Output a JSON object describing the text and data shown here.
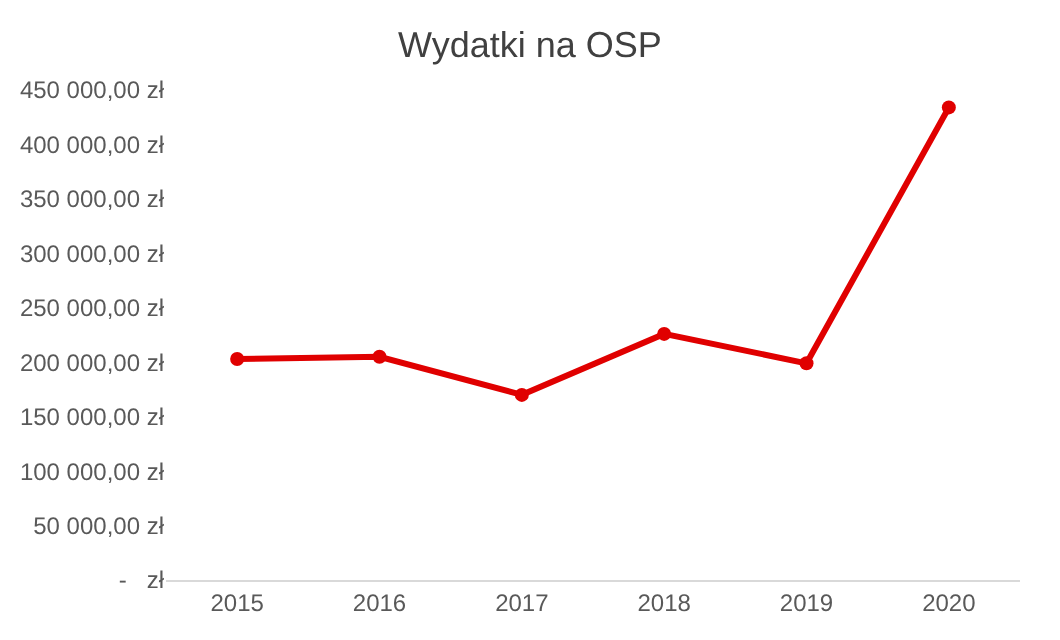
{
  "chart_data": {
    "type": "line",
    "title": "Wydatki na OSP",
    "categories": [
      "2015",
      "2016",
      "2017",
      "2018",
      "2019",
      "2020"
    ],
    "series": [
      {
        "color": "#e00000",
        "values": [
          203000,
          205000,
          170000,
          226000,
          199000,
          434000
        ]
      }
    ],
    "ylim": [
      0,
      450000
    ],
    "yticks": [
      {
        "value": 0,
        "label": "-   zł"
      },
      {
        "value": 50000,
        "label": "50 000,00 zł"
      },
      {
        "value": 100000,
        "label": "100 000,00 zł"
      },
      {
        "value": 150000,
        "label": "150 000,00 zł"
      },
      {
        "value": 200000,
        "label": "200 000,00 zł"
      },
      {
        "value": 250000,
        "label": "250 000,00 zł"
      },
      {
        "value": 300000,
        "label": "300 000,00 zł"
      },
      {
        "value": 350000,
        "label": "350 000,00 zł"
      },
      {
        "value": 400000,
        "label": "400 000,00 zł"
      },
      {
        "value": 450000,
        "label": "450 000,00 zł"
      }
    ],
    "grid": false,
    "legend": false,
    "marker": "circle",
    "line_style": "solid"
  }
}
